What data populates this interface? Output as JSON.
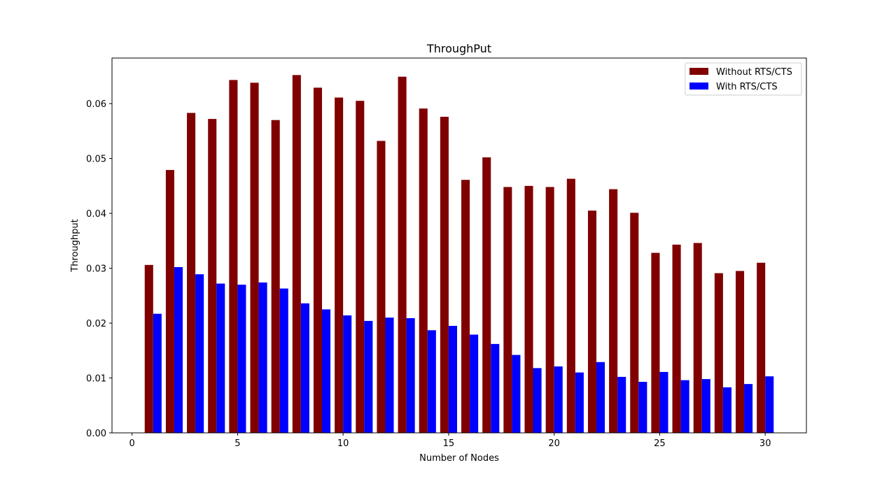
{
  "chart_data": {
    "type": "bar",
    "title": "ThroughPut",
    "xlabel": "Number of Nodes",
    "ylabel": "Throughput",
    "xlim": [
      -0.95,
      31.95
    ],
    "ylim": [
      0,
      0.0683
    ],
    "xticks": [
      0,
      5,
      10,
      15,
      20,
      25,
      30
    ],
    "yticks": [
      0.0,
      0.01,
      0.02,
      0.03,
      0.04,
      0.05,
      0.06
    ],
    "ytick_labels": [
      "0.00",
      "0.01",
      "0.02",
      "0.03",
      "0.04",
      "0.05",
      "0.06"
    ],
    "legend_position": "top-right",
    "grid": false,
    "x": [
      1,
      2,
      3,
      4,
      5,
      6,
      7,
      8,
      9,
      10,
      11,
      12,
      13,
      14,
      15,
      16,
      17,
      18,
      19,
      20,
      21,
      22,
      23,
      24,
      25,
      26,
      27,
      28,
      29,
      30
    ],
    "series": [
      {
        "name": "Without RTS/CTS",
        "color": "#800000",
        "values": [
          0.0306,
          0.0479,
          0.0583,
          0.0572,
          0.0643,
          0.0638,
          0.057,
          0.0652,
          0.0629,
          0.0611,
          0.0605,
          0.0532,
          0.0649,
          0.0591,
          0.0576,
          0.0461,
          0.0502,
          0.0448,
          0.045,
          0.0448,
          0.0463,
          0.0405,
          0.0444,
          0.0401,
          0.0328,
          0.0343,
          0.0346,
          0.0291,
          0.0295,
          0.031
        ]
      },
      {
        "name": "With RTS/CTS",
        "color": "#0000ff",
        "values": [
          0.0217,
          0.0302,
          0.0289,
          0.0272,
          0.027,
          0.0274,
          0.0263,
          0.0236,
          0.0225,
          0.0214,
          0.0204,
          0.021,
          0.0209,
          0.0187,
          0.0195,
          0.0179,
          0.0162,
          0.0142,
          0.0118,
          0.0121,
          0.011,
          0.0129,
          0.0102,
          0.0093,
          0.0111,
          0.0096,
          0.0098,
          0.0083,
          0.0089,
          0.0103
        ]
      }
    ]
  }
}
